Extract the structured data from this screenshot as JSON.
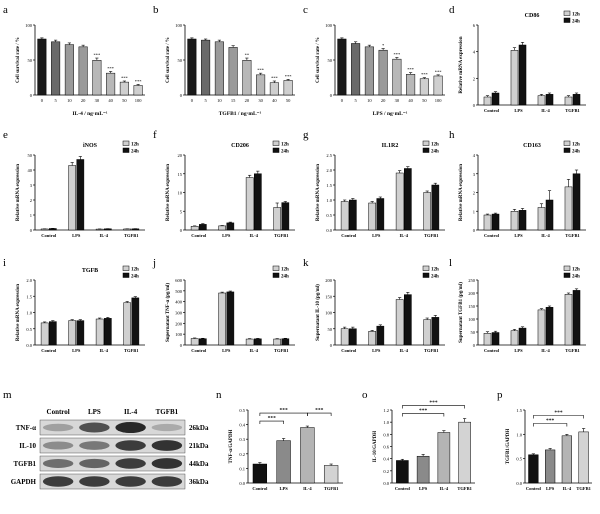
{
  "figure": {
    "panel_letters": [
      "a",
      "b",
      "c",
      "d",
      "e",
      "f",
      "g",
      "h",
      "i",
      "j",
      "k",
      "l",
      "m",
      "n",
      "o",
      "p"
    ]
  },
  "colors": {
    "bar_dark": "#111111",
    "bar_light": "#d0d0d0",
    "grad_1": "#1a1a1a",
    "grad_2": "#6a6a6a",
    "grad_3": "#9a9a9a",
    "grad_4": "#b8b8b8",
    "grad_5": "#cfcfcf",
    "axis": "#000000"
  },
  "chart_data": [
    {
      "id": "a",
      "type": "bar",
      "style": "gradient",
      "ylabel": "Cell survival rate / %",
      "xlabel": "IL-4 / ng·mL⁻¹",
      "categories": [
        "0",
        "5",
        "10",
        "20",
        "30",
        "40",
        "50",
        "100"
      ],
      "values": [
        100,
        95,
        90,
        86,
        62,
        39,
        23,
        17
      ],
      "errors": [
        2,
        3,
        3,
        3,
        4,
        3,
        2,
        2
      ],
      "annotations": [
        "",
        "",
        "",
        "",
        "***",
        "***",
        "***",
        "***"
      ],
      "ylim": [
        0,
        125
      ],
      "yticks": [
        "0",
        "50",
        "100"
      ]
    },
    {
      "id": "b",
      "type": "bar",
      "style": "gradient",
      "ylabel": "Cell survival rate / %",
      "xlabel": "TGFB1 / ng·mL⁻¹",
      "categories": [
        "0",
        "5",
        "10",
        "15",
        "20",
        "30",
        "40",
        "50"
      ],
      "values": [
        100,
        98,
        95,
        85,
        62,
        36,
        22,
        26
      ],
      "errors": [
        2,
        2,
        3,
        3,
        4,
        3,
        3,
        2
      ],
      "annotations": [
        "",
        "",
        "",
        "",
        "**",
        "***",
        "***",
        "***"
      ],
      "ylim": [
        0,
        125
      ],
      "yticks": [
        "0",
        "50",
        "100"
      ]
    },
    {
      "id": "c",
      "type": "bar",
      "style": "gradient",
      "ylabel": "Cell survival rate / %",
      "xlabel": "LPS / ng·mL⁻¹",
      "categories": [
        "0",
        "5",
        "10",
        "20",
        "30",
        "40",
        "50",
        "100"
      ],
      "values": [
        100,
        92,
        86,
        80,
        64,
        37,
        29,
        34
      ],
      "errors": [
        2,
        3,
        3,
        3,
        3,
        3,
        2,
        2
      ],
      "annotations": [
        "",
        "",
        "",
        "*",
        "***",
        "***",
        "***",
        "***"
      ],
      "ylim": [
        0,
        125
      ],
      "yticks": [
        "0",
        "50",
        "100"
      ]
    },
    {
      "id": "d",
      "type": "bar",
      "style": "paired",
      "title": "CD86",
      "ylabel": "Relative mRNA expression",
      "categories": [
        "Control",
        "LPS",
        "IL-4",
        "TGFB1"
      ],
      "series": [
        {
          "name": "12h",
          "values": [
            0.6,
            4.1,
            0.7,
            0.6
          ],
          "errors": [
            0.1,
            0.2,
            0.1,
            0.1
          ]
        },
        {
          "name": "24h",
          "values": [
            0.9,
            4.5,
            0.8,
            0.8
          ],
          "errors": [
            0.1,
            0.2,
            0.1,
            0.1
          ]
        }
      ],
      "ylim": [
        0,
        6
      ],
      "yticks": [
        "0",
        "2",
        "4",
        "6"
      ]
    },
    {
      "id": "e",
      "type": "bar",
      "style": "paired",
      "title": "iNOS",
      "ylabel": "Relative mRNA expression",
      "categories": [
        "Control",
        "LPS",
        "IL-4",
        "TGFB1"
      ],
      "series": [
        {
          "name": "12h",
          "values": [
            0.7,
            43,
            0.6,
            0.7
          ],
          "errors": [
            0.1,
            2,
            0.1,
            0.1
          ]
        },
        {
          "name": "24h",
          "values": [
            1.0,
            47,
            0.8,
            0.8
          ],
          "errors": [
            0.1,
            2,
            0.1,
            0.1
          ]
        }
      ],
      "ylim": [
        0,
        50
      ],
      "broken_axis": true,
      "yticks": [
        "0",
        "1",
        "2",
        "3",
        "40",
        "50"
      ]
    },
    {
      "id": "f",
      "type": "bar",
      "style": "paired",
      "title": "CD206",
      "ylabel": "Relative mRNA expression",
      "categories": [
        "Control",
        "LPS",
        "IL-4",
        "TGFB1"
      ],
      "series": [
        {
          "name": "12h",
          "values": [
            1.0,
            1.1,
            14.0,
            6.0
          ],
          "errors": [
            0.1,
            0.1,
            0.6,
            1.2
          ]
        },
        {
          "name": "24h",
          "values": [
            1.5,
            1.9,
            15.0,
            7.3
          ],
          "errors": [
            0.2,
            0.2,
            0.7,
            0.3
          ]
        }
      ],
      "ylim": [
        0,
        20
      ],
      "yticks": [
        "0",
        "5",
        "10",
        "15",
        "20"
      ]
    },
    {
      "id": "g",
      "type": "bar",
      "style": "paired",
      "title": "IL1R2",
      "ylabel": "Relative mRNA expression",
      "categories": [
        "Control",
        "LPS",
        "IL-4",
        "TGFB1"
      ],
      "series": [
        {
          "name": "12h",
          "values": [
            0.95,
            0.9,
            1.9,
            1.25
          ],
          "errors": [
            0.05,
            0.05,
            0.08,
            0.05
          ]
        },
        {
          "name": "24h",
          "values": [
            1.0,
            1.05,
            2.05,
            1.5
          ],
          "errors": [
            0.05,
            0.05,
            0.06,
            0.06
          ]
        }
      ],
      "ylim": [
        0,
        2.5
      ],
      "yticks": [
        "0.0",
        "0.5",
        "1.0",
        "1.5",
        "2.0",
        "2.5"
      ]
    },
    {
      "id": "h",
      "type": "bar",
      "style": "paired",
      "title": "CD163",
      "ylabel": "Relative mRNA expression",
      "categories": [
        "Control",
        "LPS",
        "IL-4",
        "TGFB1"
      ],
      "series": [
        {
          "name": "12h",
          "values": [
            0.8,
            1.0,
            1.2,
            2.3
          ],
          "errors": [
            0.05,
            0.1,
            0.2,
            0.4
          ]
        },
        {
          "name": "24h",
          "values": [
            0.85,
            1.05,
            1.6,
            3.0
          ],
          "errors": [
            0.05,
            0.1,
            0.5,
            0.2
          ]
        }
      ],
      "ylim": [
        0,
        4
      ],
      "yticks": [
        "0",
        "1",
        "2",
        "3",
        "4"
      ]
    },
    {
      "id": "i",
      "type": "bar",
      "style": "paired",
      "title": "TGFB",
      "ylabel": "Relative mRNA expression",
      "categories": [
        "Control",
        "LPS",
        "IL-4",
        "TGFB1"
      ],
      "series": [
        {
          "name": "12h",
          "values": [
            0.68,
            0.75,
            0.8,
            1.3
          ],
          "errors": [
            0.03,
            0.03,
            0.03,
            0.04
          ]
        },
        {
          "name": "24h",
          "values": [
            0.72,
            0.75,
            0.82,
            1.45
          ],
          "errors": [
            0.03,
            0.03,
            0.03,
            0.04
          ]
        }
      ],
      "ylim": [
        0,
        2.0
      ],
      "yticks": [
        "0.0",
        "0.5",
        "1.0",
        "1.5",
        "2.0"
      ]
    },
    {
      "id": "j",
      "type": "bar",
      "style": "paired",
      "ylabel": "Supernatant TNF-α (pg/ml)",
      "categories": [
        "Control",
        "LPS",
        "IL-4",
        "TGFB1"
      ],
      "series": [
        {
          "name": "12h",
          "values": [
            60,
            480,
            55,
            55
          ],
          "errors": [
            5,
            8,
            4,
            4
          ]
        },
        {
          "name": "24h",
          "values": [
            58,
            490,
            57,
            58
          ],
          "errors": [
            4,
            8,
            4,
            4
          ]
        }
      ],
      "ylim": [
        0,
        600
      ],
      "yticks": [
        "0",
        "100",
        "200",
        "300",
        "400",
        "500",
        "600"
      ]
    },
    {
      "id": "k",
      "type": "bar",
      "style": "paired",
      "ylabel": "Supernatant IL-10 (pg/ml)",
      "categories": [
        "Control",
        "LPS",
        "IL-4",
        "TGFB1"
      ],
      "series": [
        {
          "name": "12h",
          "values": [
            50,
            42,
            140,
            78
          ],
          "errors": [
            5,
            3,
            6,
            5
          ]
        },
        {
          "name": "24h",
          "values": [
            50,
            58,
            155,
            85
          ],
          "errors": [
            5,
            4,
            7,
            6
          ]
        }
      ],
      "ylim": [
        0,
        200
      ],
      "yticks": [
        "0",
        "50",
        "100",
        "150",
        "200"
      ]
    },
    {
      "id": "l",
      "type": "bar",
      "style": "paired",
      "ylabel": "Supernatant TGFB1 (pg/ml)",
      "categories": [
        "Control",
        "LPS",
        "IL-4",
        "TGFB1"
      ],
      "series": [
        {
          "name": "12h",
          "values": [
            45,
            55,
            135,
            195
          ],
          "errors": [
            6,
            5,
            5,
            5
          ]
        },
        {
          "name": "24h",
          "values": [
            48,
            65,
            145,
            210
          ],
          "errors": [
            5,
            5,
            5,
            6
          ]
        }
      ],
      "ylim": [
        0,
        250
      ],
      "yticks": [
        "0",
        "50",
        "100",
        "150",
        "200",
        "250"
      ]
    },
    {
      "id": "n",
      "type": "bar",
      "style": "shaded",
      "ylabel": "TNF-α/GAPDH",
      "categories": [
        "Control",
        "LPS",
        "IL-4",
        "TGFB1"
      ],
      "values": [
        0.13,
        0.29,
        0.38,
        0.12
      ],
      "errors": [
        0.01,
        0.015,
        0.01,
        0.01
      ],
      "ylim": [
        0,
        0.5
      ],
      "yticks": [
        "0.0",
        "0.1",
        "0.2",
        "0.3",
        "0.4",
        "0.5"
      ],
      "brackets": [
        {
          "from": 0,
          "to": 1,
          "label": "***",
          "level": 0
        },
        {
          "from": 0,
          "to": 2,
          "label": "***",
          "level": 1
        },
        {
          "from": 2,
          "to": 3,
          "label": "***",
          "level": 1
        }
      ]
    },
    {
      "id": "o",
      "type": "bar",
      "style": "shaded",
      "ylabel": "IL-10/GAPDH",
      "categories": [
        "Control",
        "LPS",
        "IL-4",
        "TGFB1"
      ],
      "values": [
        0.37,
        0.44,
        0.83,
        1.0
      ],
      "errors": [
        0.02,
        0.03,
        0.03,
        0.06
      ],
      "ylim": [
        0,
        1.2
      ],
      "yticks": [
        "0.0",
        "0.2",
        "0.4",
        "0.6",
        "0.8",
        "1.0",
        "1.2"
      ],
      "brackets": [
        {
          "from": 0,
          "to": 2,
          "label": "***",
          "level": 0
        },
        {
          "from": 0,
          "to": 3,
          "label": "***",
          "level": 1
        }
      ]
    },
    {
      "id": "p",
      "type": "bar",
      "style": "shaded",
      "ylabel": "TGFB1/GAPDH",
      "categories": [
        "Control",
        "LPS",
        "IL-4",
        "TGFB1"
      ],
      "values": [
        0.58,
        0.68,
        0.97,
        1.05
      ],
      "errors": [
        0.02,
        0.03,
        0.03,
        0.07
      ],
      "ylim": [
        0,
        1.5
      ],
      "yticks": [
        "0.0",
        "0.5",
        "1.0",
        "1.5"
      ],
      "brackets": [
        {
          "from": 0,
          "to": 2,
          "label": "***",
          "level": 0
        },
        {
          "from": 0,
          "to": 3,
          "label": "***",
          "level": 1
        }
      ]
    }
  ],
  "western_blot": {
    "id": "m",
    "lanes": [
      "Control",
      "LPS",
      "IL-4",
      "TGFB1"
    ],
    "rows": [
      {
        "protein": "TNF-α",
        "size": "26kDa",
        "intensities": [
          0.35,
          0.75,
          0.95,
          0.3
        ]
      },
      {
        "protein": "IL-10",
        "size": "21kDa",
        "intensities": [
          0.45,
          0.55,
          0.85,
          0.9
        ]
      },
      {
        "protein": "TGFB1",
        "size": "44kDa",
        "intensities": [
          0.6,
          0.65,
          0.85,
          0.9
        ]
      },
      {
        "protein": "GAPDH",
        "size": "36kDa",
        "intensities": [
          0.85,
          0.85,
          0.85,
          0.85
        ]
      }
    ]
  }
}
